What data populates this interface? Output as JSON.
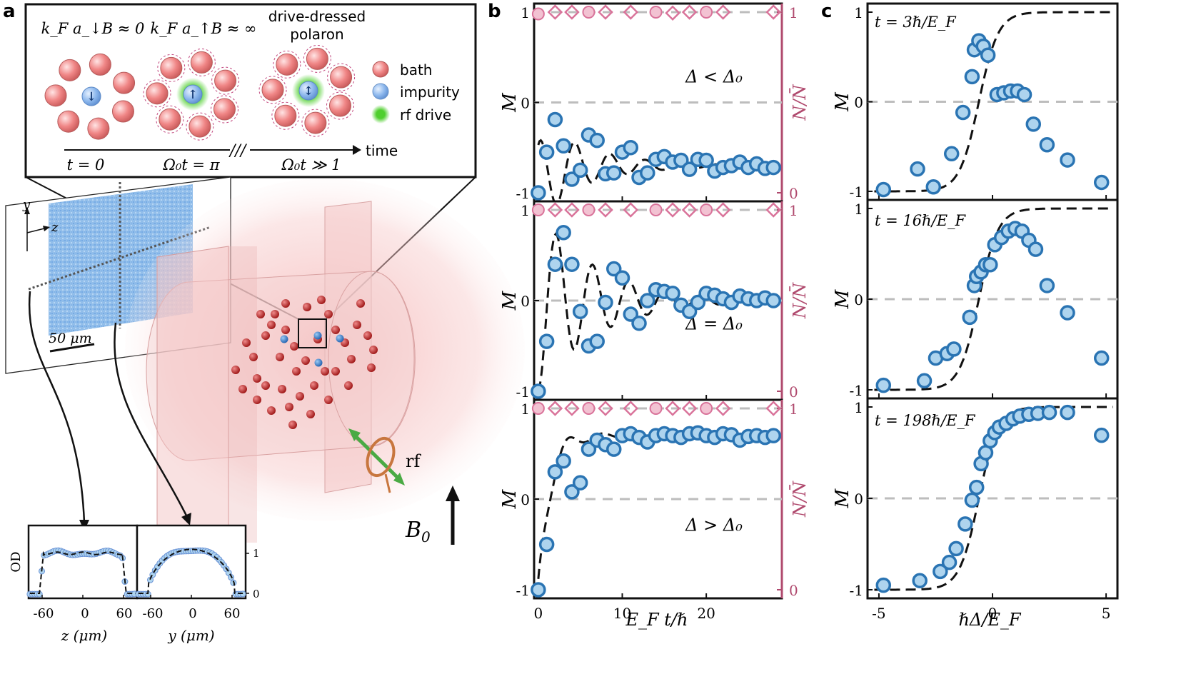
{
  "panel_labels": {
    "a": "a",
    "b": "b",
    "c": "c"
  },
  "colors": {
    "marker_fill": "#aed4ee",
    "marker_edge": "#2a74b3",
    "pink": "#d9739a",
    "axis_pink": "#b04a6e",
    "bath": "#f08686",
    "impurity": "#8bb6ec",
    "drive": "#66d44a",
    "grid": "#bdbdbd"
  },
  "schematic": {
    "labels": {
      "down_B": "k_F a_↓B ≈ 0",
      "up_B": "k_F a_↑B ≈ ∞",
      "dressed_line1": "drive-dressed",
      "dressed_line2": "polaron"
    },
    "legend": [
      {
        "name": "bath",
        "color": "#f08686"
      },
      {
        "name": "impurity",
        "color": "#8bb6ec"
      },
      {
        "name": "rf drive",
        "color": "#66d44a"
      }
    ],
    "timeline": {
      "axis_label": "time",
      "ticks": [
        "t = 0",
        "Ω₀t = π",
        "Ω₀t ≫ 1"
      ]
    },
    "arrows": {
      "down": "↓",
      "up": "↑",
      "updown": "↕"
    }
  },
  "experiment": {
    "axes": {
      "y": "y",
      "z": "z"
    },
    "scale_bar": "50 μm",
    "rf_label": "rf",
    "field_label": "B",
    "field_sub": "0",
    "od_plots": {
      "ylabel": "OD",
      "yticks": [
        "1",
        "0"
      ],
      "z_plot": {
        "xticks": [
          "-60",
          "0",
          "60"
        ],
        "xlabel": "z (μm)"
      },
      "y_plot": {
        "xticks": [
          "-60",
          "0",
          "60"
        ],
        "xlabel": "y (μm)"
      }
    }
  },
  "panel_b": {
    "xlabel": "E_F t/ℏ",
    "xticks": [
      "0",
      "10",
      "20"
    ],
    "left_ylabel": "M",
    "right_ylabel": "N/N̄",
    "left_yticks": [
      "1",
      "0",
      "-1"
    ],
    "right_yticks": [
      "1",
      "0"
    ],
    "rows": [
      {
        "annotation": "Δ < Δ₀"
      },
      {
        "annotation": "Δ = Δ₀"
      },
      {
        "annotation": "Δ > Δ₀"
      }
    ]
  },
  "panel_c": {
    "xlabel": "ℏΔ/E_F",
    "xticks": [
      "-5",
      "0",
      "5"
    ],
    "ylabel": "M",
    "yticks": [
      "1",
      "0",
      "-1"
    ],
    "rows": [
      {
        "annotation": "t = 3ℏ/E_F"
      },
      {
        "annotation": "t = 16ℏ/E_F"
      },
      {
        "annotation": "t = 198ℏ/E_F"
      }
    ]
  },
  "chart_data": [
    {
      "type": "scatter",
      "title": "Δ < Δ₀",
      "xlabel": "E_F t/ℏ",
      "ylabel": "M",
      "xlim": [
        -0.5,
        29
      ],
      "ylim": [
        -1,
        1
      ],
      "x": [
        0,
        1,
        2,
        3,
        4,
        5,
        6,
        7,
        8,
        9,
        10,
        11,
        12,
        13,
        14,
        15,
        16,
        17,
        18,
        19,
        20,
        21,
        22,
        23,
        24,
        25,
        26,
        27,
        28
      ],
      "M": [
        -1.0,
        -0.55,
        -0.19,
        -0.48,
        -0.85,
        -0.75,
        -0.36,
        -0.42,
        -0.79,
        -0.78,
        -0.55,
        -0.5,
        -0.83,
        -0.78,
        -0.63,
        -0.6,
        -0.66,
        -0.64,
        -0.74,
        -0.63,
        -0.64,
        -0.76,
        -0.72,
        -0.7,
        -0.66,
        -0.72,
        -0.68,
        -0.73,
        -0.72
      ],
      "N_over_Nbar": [
        0.98,
        1.0,
        1.0,
        1.0,
        1.0,
        1.0,
        1.0,
        0.99,
        1.0,
        1.0,
        1.0,
        1.0
      ],
      "N_x": [
        0,
        2,
        4,
        6,
        8,
        11,
        14,
        16,
        18,
        20,
        22,
        28
      ]
    },
    {
      "type": "scatter",
      "title": "Δ = Δ₀",
      "xlabel": "E_F t/ℏ",
      "ylabel": "M",
      "xlim": [
        -0.5,
        29
      ],
      "ylim": [
        -1,
        1
      ],
      "x": [
        0,
        1,
        2,
        3,
        4,
        5,
        6,
        7,
        8,
        9,
        10,
        11,
        12,
        13,
        14,
        15,
        16,
        17,
        18,
        19,
        20,
        21,
        22,
        23,
        24,
        25,
        26,
        27,
        28
      ],
      "M": [
        -1.0,
        -0.45,
        0.4,
        0.75,
        0.4,
        -0.12,
        -0.5,
        -0.45,
        -0.02,
        0.35,
        0.25,
        -0.15,
        -0.25,
        0.0,
        0.12,
        0.1,
        0.08,
        -0.05,
        -0.12,
        -0.02,
        0.08,
        0.06,
        0.02,
        -0.02,
        0.05,
        0.02,
        0.0,
        0.03,
        0.0
      ],
      "N_over_Nbar": [
        1.0,
        1.0,
        1.0,
        1.0,
        1.0,
        1.0,
        1.0,
        1.0,
        1.0,
        1.0,
        1.0,
        1.0
      ],
      "N_x": [
        0,
        2,
        4,
        6,
        8,
        11,
        14,
        16,
        18,
        20,
        22,
        28
      ]
    },
    {
      "type": "scatter",
      "title": "Δ > Δ₀",
      "xlabel": "E_F t/ℏ",
      "ylabel": "M",
      "xlim": [
        -0.5,
        29
      ],
      "ylim": [
        -1,
        1
      ],
      "x": [
        0,
        1,
        2,
        3,
        4,
        5,
        6,
        7,
        8,
        9,
        10,
        11,
        12,
        13,
        14,
        15,
        16,
        17,
        18,
        19,
        20,
        21,
        22,
        23,
        24,
        25,
        26,
        27,
        28
      ],
      "M": [
        -1.0,
        -0.5,
        0.3,
        0.42,
        0.08,
        0.18,
        0.55,
        0.65,
        0.6,
        0.55,
        0.7,
        0.72,
        0.68,
        0.63,
        0.7,
        0.72,
        0.7,
        0.68,
        0.72,
        0.73,
        0.7,
        0.68,
        0.72,
        0.71,
        0.65,
        0.69,
        0.7,
        0.68,
        0.7
      ],
      "N_over_Nbar": [
        1.0,
        1.0,
        1.0,
        1.0,
        1.0,
        1.0,
        1.0,
        1.0,
        1.0,
        1.0,
        1.0,
        1.0
      ],
      "N_x": [
        0,
        2,
        4,
        6,
        8,
        11,
        14,
        16,
        18,
        20,
        22,
        28
      ]
    },
    {
      "type": "scatter",
      "title": "t = 3ℏ/E_F",
      "xlabel": "ℏΔ/E_F",
      "ylabel": "M",
      "xlim": [
        -5.5,
        5.5
      ],
      "ylim": [
        -1,
        1
      ],
      "x": [
        -4.8,
        -3.3,
        -2.6,
        -1.8,
        -1.3,
        -0.9,
        -0.8,
        -0.6,
        -0.4,
        -0.2,
        0.2,
        0.5,
        0.8,
        1.1,
        1.4,
        1.8,
        2.4,
        3.3,
        4.8
      ],
      "M": [
        -0.98,
        -0.75,
        -0.95,
        -0.58,
        -0.12,
        0.28,
        0.58,
        0.68,
        0.62,
        0.52,
        0.08,
        0.1,
        0.12,
        0.12,
        0.08,
        -0.25,
        -0.48,
        -0.65,
        -0.9
      ]
    },
    {
      "type": "scatter",
      "title": "t = 16ℏ/E_F",
      "xlabel": "ℏΔ/E_F",
      "ylabel": "M",
      "xlim": [
        -5.5,
        5.5
      ],
      "ylim": [
        -1,
        1
      ],
      "x": [
        -4.8,
        -3.0,
        -2.5,
        -2.0,
        -1.7,
        -1.0,
        -0.8,
        -0.7,
        -0.5,
        -0.3,
        -0.1,
        0.1,
        0.4,
        0.7,
        1.0,
        1.3,
        1.6,
        1.9,
        2.4,
        3.3,
        4.8
      ],
      "M": [
        -0.95,
        -0.9,
        -0.65,
        -0.6,
        -0.55,
        -0.2,
        0.15,
        0.25,
        0.3,
        0.38,
        0.38,
        0.6,
        0.68,
        0.75,
        0.78,
        0.75,
        0.65,
        0.55,
        0.15,
        -0.15,
        -0.65
      ]
    },
    {
      "type": "scatter",
      "title": "t = 198ℏ/E_F",
      "xlabel": "ℏΔ/E_F",
      "ylabel": "M",
      "xlim": [
        -5.5,
        5.5
      ],
      "ylim": [
        -1,
        1
      ],
      "x": [
        -4.8,
        -3.2,
        -2.3,
        -1.9,
        -1.6,
        -1.2,
        -0.9,
        -0.7,
        -0.5,
        -0.3,
        -0.1,
        0.1,
        0.3,
        0.6,
        0.9,
        1.2,
        1.6,
        2.0,
        2.5,
        3.3,
        4.8
      ],
      "M": [
        -0.95,
        -0.9,
        -0.8,
        -0.7,
        -0.55,
        -0.28,
        -0.02,
        0.12,
        0.38,
        0.5,
        0.63,
        0.72,
        0.78,
        0.82,
        0.87,
        0.9,
        0.92,
        0.93,
        0.94,
        0.94,
        0.69
      ]
    }
  ]
}
